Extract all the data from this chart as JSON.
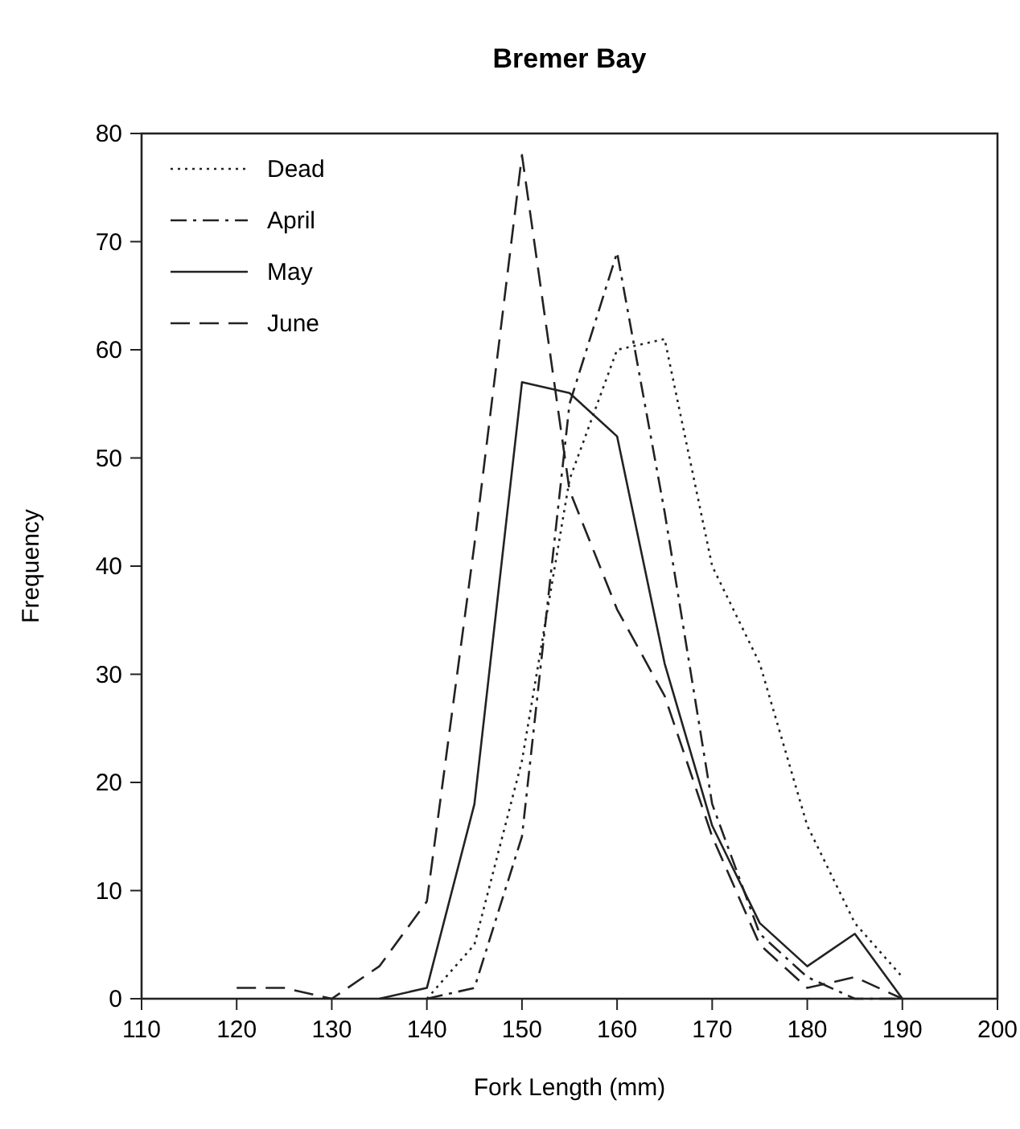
{
  "chart_data": {
    "type": "line",
    "title": "Bremer Bay",
    "xlabel": "Fork Length (mm)",
    "ylabel": "Frequency",
    "xlim": [
      110,
      200
    ],
    "xticks": [
      110,
      120,
      130,
      140,
      150,
      160,
      170,
      180,
      190,
      200
    ],
    "ylim": [
      0,
      80
    ],
    "yticks": [
      0,
      10,
      20,
      30,
      40,
      50,
      60,
      70,
      80
    ],
    "legend": "top left",
    "grid": false,
    "marker": "none",
    "series": [
      {
        "name": "Dead",
        "color": "#222222",
        "line_style": "dotted",
        "x": [
          140,
          145,
          150,
          155,
          160,
          165,
          170,
          175,
          180,
          185,
          190
        ],
        "values": [
          0,
          5,
          22,
          48,
          60,
          61,
          40,
          31,
          16,
          7,
          2
        ]
      },
      {
        "name": "April",
        "color": "#222222",
        "line_style": "dashdot",
        "x": [
          140,
          145,
          150,
          155,
          160,
          165,
          170,
          175,
          180,
          185,
          190
        ],
        "values": [
          0,
          1,
          15,
          55,
          69,
          45,
          18,
          6,
          2,
          0,
          0
        ]
      },
      {
        "name": "May",
        "color": "#222222",
        "line_style": "solid",
        "x": [
          135,
          140,
          145,
          150,
          155,
          160,
          165,
          170,
          175,
          180,
          185,
          190
        ],
        "values": [
          0,
          1,
          18,
          57,
          56,
          52,
          31,
          16,
          7,
          3,
          6,
          0
        ]
      },
      {
        "name": "June",
        "color": "#222222",
        "line_style": "dashed",
        "x": [
          120,
          125,
          130,
          135,
          140,
          145,
          150,
          155,
          160,
          165,
          170,
          175,
          180,
          185,
          190
        ],
        "values": [
          1,
          1,
          0,
          3,
          9,
          42,
          78,
          47,
          36,
          28,
          15,
          5,
          1,
          2,
          0
        ]
      }
    ]
  }
}
